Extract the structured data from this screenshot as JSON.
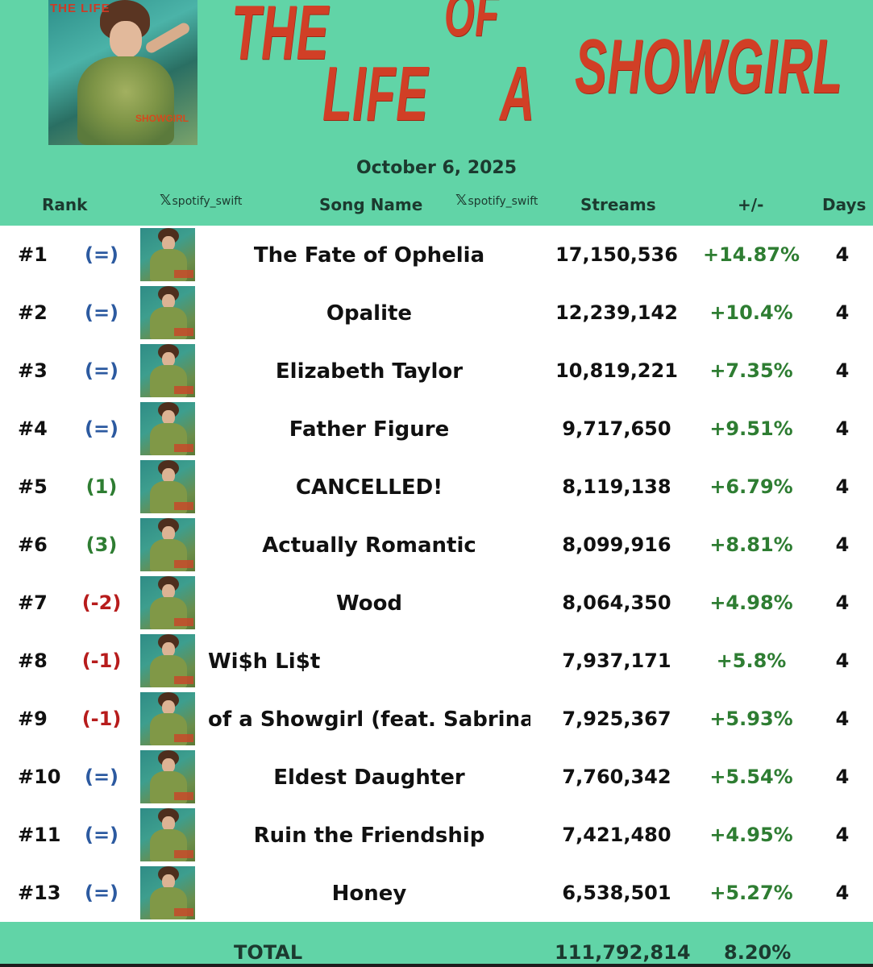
{
  "header": {
    "cover_text_top": "THE LIFE",
    "cover_text_bottom": "SHOWGIRL",
    "title_words": [
      "THE",
      "OF",
      "LIFE",
      "A",
      "SHOWGIRL"
    ],
    "date": "October 6, 2025",
    "handle": "spotify_swift",
    "columns": {
      "rank": "Rank",
      "song": "Song Name",
      "streams": "Streams",
      "change_pct": "+/-",
      "days": "Days"
    }
  },
  "rows": [
    {
      "rank": "#1",
      "change": "(=)",
      "change_type": "same",
      "song": "The Fate of Ophelia",
      "streams": "17,150,536",
      "pct": "+14.87%",
      "days": "4"
    },
    {
      "rank": "#2",
      "change": "(=)",
      "change_type": "same",
      "song": "Opalite",
      "streams": "12,239,142",
      "pct": "+10.4%",
      "days": "4"
    },
    {
      "rank": "#3",
      "change": "(=)",
      "change_type": "same",
      "song": "Elizabeth Taylor",
      "streams": "10,819,221",
      "pct": "+7.35%",
      "days": "4"
    },
    {
      "rank": "#4",
      "change": "(=)",
      "change_type": "same",
      "song": "Father Figure",
      "streams": "9,717,650",
      "pct": "+9.51%",
      "days": "4"
    },
    {
      "rank": "#5",
      "change": "(1)",
      "change_type": "up",
      "song": "CANCELLED!",
      "streams": "8,119,138",
      "pct": "+6.79%",
      "days": "4"
    },
    {
      "rank": "#6",
      "change": "(3)",
      "change_type": "up",
      "song": "Actually Romantic",
      "streams": "8,099,916",
      "pct": "+8.81%",
      "days": "4"
    },
    {
      "rank": "#7",
      "change": "(-2)",
      "change_type": "down",
      "song": "Wood",
      "streams": "8,064,350",
      "pct": "+4.98%",
      "days": "4"
    },
    {
      "rank": "#8",
      "change": "(-1)",
      "change_type": "down",
      "song": "Wi$h Li$t",
      "streams": "7,937,171",
      "pct": "+5.8%",
      "days": "4"
    },
    {
      "rank": "#9",
      "change": "(-1)",
      "change_type": "down",
      "song": "of a Showgirl (feat. Sabrina Ca",
      "streams": "7,925,367",
      "pct": "+5.93%",
      "days": "4"
    },
    {
      "rank": "#10",
      "change": "(=)",
      "change_type": "same",
      "song": "Eldest Daughter",
      "streams": "7,760,342",
      "pct": "+5.54%",
      "days": "4"
    },
    {
      "rank": "#11",
      "change": "(=)",
      "change_type": "same",
      "song": "Ruin the Friendship",
      "streams": "7,421,480",
      "pct": "+4.95%",
      "days": "4"
    },
    {
      "rank": "#13",
      "change": "(=)",
      "change_type": "same",
      "song": "Honey",
      "streams": "6,538,501",
      "pct": "+5.27%",
      "days": "4"
    }
  ],
  "total": {
    "label": "TOTAL",
    "streams": "111,792,814",
    "pct": "8.20%"
  },
  "colors": {
    "header_band": "#61d4a7",
    "title_red": "#d13f26",
    "change_same": "#2c5aa0",
    "change_up": "#2e7d32",
    "change_down": "#b71c1c",
    "pct_green": "#2e7d32"
  }
}
